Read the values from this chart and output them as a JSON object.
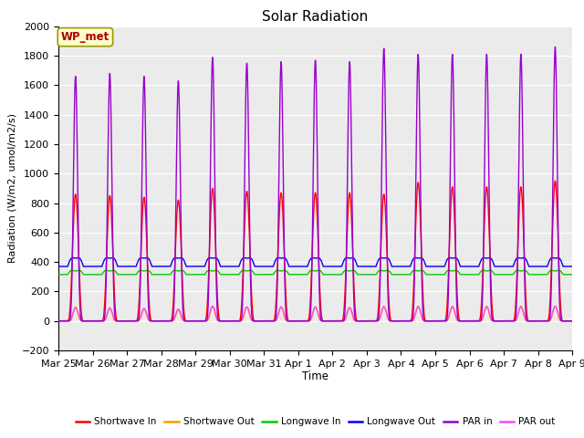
{
  "title": "Solar Radiation",
  "ylabel": "Radiation (W/m2, umol/m2/s)",
  "xlabel": "Time",
  "ylim": [
    -200,
    2000
  ],
  "yticks": [
    -200,
    0,
    200,
    400,
    600,
    800,
    1000,
    1200,
    1400,
    1600,
    1800,
    2000
  ],
  "station_label": "WP_met",
  "x_tick_labels": [
    "Mar 25",
    "Mar 26",
    "Mar 27",
    "Mar 28",
    "Mar 29",
    "Mar 30",
    "Mar 31",
    "Apr 1",
    "Apr 2",
    "Apr 3",
    "Apr 4",
    "Apr 5",
    "Apr 6",
    "Apr 7",
    "Apr 8",
    "Apr 9"
  ],
  "legend_entries": [
    {
      "label": "Shortwave In",
      "color": "#ff0000"
    },
    {
      "label": "Shortwave Out",
      "color": "#ff9900"
    },
    {
      "label": "Longwave In",
      "color": "#00cc00"
    },
    {
      "label": "Longwave Out",
      "color": "#0000ff"
    },
    {
      "label": "PAR in",
      "color": "#9900cc"
    },
    {
      "label": "PAR out",
      "color": "#ff44ff"
    }
  ],
  "background_color": "#ebebeb",
  "n_days": 15,
  "shortwave_in_peaks": [
    860,
    850,
    840,
    820,
    900,
    880,
    870,
    870,
    870,
    860,
    940,
    910,
    910,
    910,
    950
  ],
  "PAR_in_peaks": [
    1660,
    1680,
    1660,
    1630,
    1790,
    1750,
    1760,
    1770,
    1760,
    1850,
    1810,
    1810,
    1810,
    1810,
    1860
  ],
  "longwave_out_base": 370,
  "longwave_in_base": 315,
  "shortwave_out_peaks": [
    95,
    90,
    80,
    75,
    100,
    95,
    95,
    95,
    90,
    100,
    100,
    100,
    100,
    100,
    100
  ],
  "PAR_out_peaks": [
    90,
    85,
    85,
    80,
    100,
    95,
    95,
    95,
    90,
    95,
    95,
    95,
    95,
    95,
    100
  ],
  "lw_out_bump": 80,
  "lw_in_bump": 40,
  "lw_out_day_dip": -30,
  "rise": 0.27,
  "set_": 0.73,
  "sharp_power": 4
}
